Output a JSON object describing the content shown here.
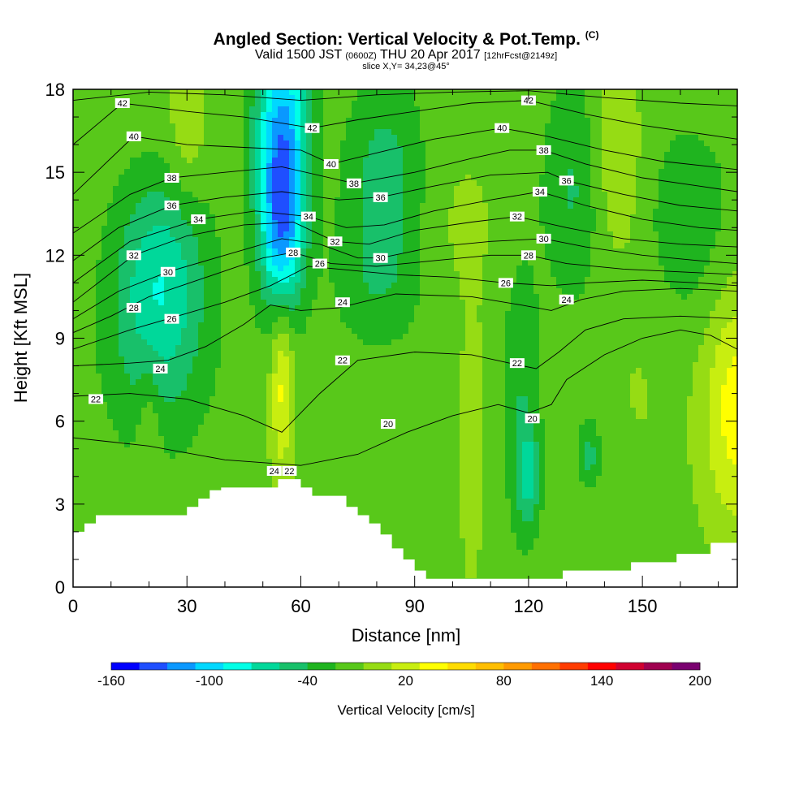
{
  "title": {
    "main": "Angled Section: Vertical Velocity & Pot.Temp.",
    "main_unit": "(C)",
    "valid_a": "Valid 1500 JST",
    "valid_b": "(0600Z)",
    "valid_c": "THU 20 Apr 2017",
    "valid_d": "[12hrFcst@2149z]",
    "slice": "slice X,Y= 34,23@45°"
  },
  "colors": {
    "frame": "#000000",
    "terrain": "#ffffff",
    "contour": "#000000"
  },
  "chart_data": {
    "type": "heatmap",
    "xlabel": "Distance [nm]",
    "ylabel": "Height [Kft MSL]",
    "xlim": [
      0,
      175
    ],
    "ylim": [
      0,
      18
    ],
    "x_ticks": [
      0,
      30,
      60,
      90,
      120,
      150
    ],
    "y_ticks": [
      0,
      3,
      6,
      9,
      12,
      15,
      18
    ],
    "field_label": "Vertical Velocity [cm/s]",
    "colorbar": {
      "min": -160,
      "max": 200,
      "step": 20,
      "tick_labels": [
        "-160",
        "-100",
        "-40",
        "20",
        "80",
        "140",
        "200"
      ],
      "tick_values": [
        -160,
        -100,
        -40,
        20,
        80,
        140,
        200
      ],
      "colors": [
        "#0000ff",
        "#1f4fff",
        "#0a98ff",
        "#00d8ff",
        "#00ffe6",
        "#00d89a",
        "#18c06a",
        "#1fb41f",
        "#58c81a",
        "#96dc14",
        "#c8ee10",
        "#ffff00",
        "#ffdc00",
        "#ffbe00",
        "#ff9a00",
        "#ff7000",
        "#ff3c00",
        "#ff0000",
        "#d00030",
        "#a00050",
        "#7a0070"
      ]
    },
    "terrain_profile": {
      "x": [
        0,
        3,
        6,
        9,
        12,
        15,
        18,
        21,
        24,
        27,
        30,
        33,
        36,
        39,
        42,
        45,
        48,
        51,
        54,
        57,
        60,
        63,
        66,
        69,
        72,
        75,
        78,
        81,
        84,
        87,
        90,
        93,
        96,
        99,
        102,
        105,
        108,
        111,
        114,
        117,
        120,
        123,
        126,
        129,
        132,
        135,
        138,
        141,
        144,
        147,
        150,
        153,
        156,
        159,
        162,
        165,
        168,
        171,
        175
      ],
      "height": [
        2.0,
        2.3,
        2.6,
        2.6,
        2.6,
        2.6,
        2.6,
        2.6,
        2.6,
        2.6,
        2.9,
        3.2,
        3.5,
        3.6,
        3.6,
        3.6,
        3.6,
        3.6,
        3.9,
        3.9,
        3.6,
        3.3,
        3.3,
        3.3,
        2.9,
        2.6,
        2.3,
        1.9,
        1.4,
        1.0,
        0.6,
        0.3,
        0.3,
        0.3,
        0.3,
        0.3,
        0.3,
        0.3,
        0.3,
        0.3,
        0.3,
        0.3,
        0.3,
        0.6,
        0.6,
        0.6,
        0.6,
        0.6,
        0.6,
        0.9,
        0.9,
        0.9,
        0.9,
        1.2,
        1.2,
        1.2,
        1.6,
        1.6,
        1.6
      ]
    },
    "features": [
      {
        "x": 55,
        "z": 16.0,
        "rx": 7,
        "rz": 4.5,
        "w": -120
      },
      {
        "x": 55,
        "z": 12.5,
        "rx": 5,
        "rz": 3.0,
        "w": -70
      },
      {
        "x": 82,
        "z": 15.0,
        "rx": 10,
        "rz": 3.5,
        "w": -40
      },
      {
        "x": 80,
        "z": 11.0,
        "rx": 12,
        "rz": 2.5,
        "w": -25
      },
      {
        "x": 23,
        "z": 11.5,
        "rx": 12,
        "rz": 3.5,
        "w": -60
      },
      {
        "x": 22,
        "z": 8.0,
        "rx": 14,
        "rz": 3.5,
        "w": -30
      },
      {
        "x": 132,
        "z": 14.5,
        "rx": 8,
        "rz": 4.0,
        "w": -35
      },
      {
        "x": 162,
        "z": 13.0,
        "rx": 14,
        "rz": 4.0,
        "w": -25
      },
      {
        "x": 118,
        "z": 7.0,
        "rx": 5,
        "rz": 5.0,
        "w": -30
      },
      {
        "x": 120,
        "z": 4.0,
        "rx": 3,
        "rz": 1.8,
        "w": -50
      },
      {
        "x": 136,
        "z": 4.8,
        "rx": 3,
        "rz": 1.2,
        "w": -40
      },
      {
        "x": 143,
        "z": 15.5,
        "rx": 7,
        "rz": 3.5,
        "w": 30
      },
      {
        "x": 30,
        "z": 16.5,
        "rx": 5,
        "rz": 2.5,
        "w": 25
      },
      {
        "x": 175,
        "z": 6.5,
        "rx": 9,
        "rz": 4.5,
        "w": 60
      },
      {
        "x": 55,
        "z": 7.5,
        "rx": 3,
        "rz": 3.5,
        "w": 55
      },
      {
        "x": 105,
        "z": 5.0,
        "rx": 3,
        "rz": 4.5,
        "w": 25
      },
      {
        "x": 20,
        "z": 5.8,
        "rx": 3,
        "rz": 2.5,
        "w": 25
      },
      {
        "x": 103,
        "z": 13.0,
        "rx": 10,
        "rz": 3.0,
        "w": 12
      },
      {
        "x": 150,
        "z": 8.0,
        "rx": 10,
        "rz": 5.0,
        "w": 10
      }
    ],
    "contour_labels": [
      {
        "text": "42",
        "x": 13,
        "z": 17.5
      },
      {
        "text": "40",
        "x": 16,
        "z": 16.3
      },
      {
        "text": "38",
        "x": 26,
        "z": 14.8
      },
      {
        "text": "36",
        "x": 26,
        "z": 13.8
      },
      {
        "text": "34",
        "x": 33,
        "z": 13.3
      },
      {
        "text": "32",
        "x": 16,
        "z": 12.0
      },
      {
        "text": "30",
        "x": 25,
        "z": 11.4
      },
      {
        "text": "28",
        "x": 16,
        "z": 10.1
      },
      {
        "text": "26",
        "x": 26,
        "z": 9.7
      },
      {
        "text": "24",
        "x": 23,
        "z": 7.9
      },
      {
        "text": "22",
        "x": 6,
        "z": 6.8
      },
      {
        "text": "42",
        "x": 63,
        "z": 16.6
      },
      {
        "text": "40",
        "x": 68,
        "z": 15.3
      },
      {
        "text": "38",
        "x": 74,
        "z": 14.6
      },
      {
        "text": "36",
        "x": 81,
        "z": 14.1
      },
      {
        "text": "34",
        "x": 62,
        "z": 13.4
      },
      {
        "text": "32",
        "x": 69,
        "z": 12.5
      },
      {
        "text": "28",
        "x": 58,
        "z": 12.1
      },
      {
        "text": "26",
        "x": 65,
        "z": 11.7
      },
      {
        "text": "30",
        "x": 81,
        "z": 11.9
      },
      {
        "text": "24",
        "x": 71,
        "z": 10.3
      },
      {
        "text": "22",
        "x": 71,
        "z": 8.2
      },
      {
        "text": "20",
        "x": 83,
        "z": 5.9
      },
      {
        "text": "24",
        "x": 53,
        "z": 4.2
      },
      {
        "text": "22",
        "x": 57,
        "z": 4.2
      },
      {
        "text": "42",
        "x": 120,
        "z": 17.6
      },
      {
        "text": "40",
        "x": 113,
        "z": 16.6
      },
      {
        "text": "38",
        "x": 124,
        "z": 15.8
      },
      {
        "text": "36",
        "x": 130,
        "z": 14.7
      },
      {
        "text": "34",
        "x": 123,
        "z": 14.3
      },
      {
        "text": "32",
        "x": 117,
        "z": 13.4
      },
      {
        "text": "30",
        "x": 124,
        "z": 12.6
      },
      {
        "text": "28",
        "x": 120,
        "z": 12.0
      },
      {
        "text": "26",
        "x": 114,
        "z": 11.0
      },
      {
        "text": "24",
        "x": 130,
        "z": 10.4
      },
      {
        "text": "22",
        "x": 117,
        "z": 8.1
      },
      {
        "text": "20",
        "x": 121,
        "z": 6.1
      }
    ],
    "isentropes": [
      {
        "theta": 20,
        "x": [
          0,
          20,
          40,
          60,
          75,
          88,
          100,
          112,
          120,
          126,
          130,
          140,
          150,
          160,
          168,
          175
        ],
        "z": [
          5.4,
          5.1,
          4.6,
          4.4,
          4.8,
          5.6,
          6.2,
          6.6,
          6.3,
          6.6,
          7.5,
          8.4,
          9.0,
          9.3,
          9.1,
          8.6
        ]
      },
      {
        "theta": 22,
        "x": [
          0,
          15,
          30,
          45,
          55,
          65,
          75,
          90,
          105,
          115,
          122,
          128,
          135,
          145,
          160,
          175
        ],
        "z": [
          6.9,
          7.0,
          6.8,
          6.2,
          5.6,
          7.0,
          8.2,
          8.5,
          8.4,
          8.1,
          7.9,
          8.5,
          9.3,
          9.7,
          9.8,
          9.7
        ]
      },
      {
        "theta": 24,
        "x": [
          0,
          15,
          25,
          35,
          45,
          52,
          60,
          70,
          85,
          105,
          118,
          126,
          134,
          145,
          160,
          175
        ],
        "z": [
          8.0,
          8.1,
          8.2,
          8.7,
          9.5,
          10.2,
          10.0,
          10.1,
          10.6,
          10.5,
          10.2,
          10.0,
          10.4,
          10.7,
          10.8,
          10.7
        ]
      },
      {
        "theta": 26,
        "x": [
          0,
          15,
          25,
          40,
          52,
          62,
          70,
          85,
          100,
          114,
          126,
          135,
          150,
          165,
          175
        ],
        "z": [
          8.6,
          9.3,
          9.7,
          10.3,
          10.9,
          11.6,
          11.5,
          11.3,
          11.2,
          11.0,
          10.9,
          11.0,
          11.1,
          11.0,
          10.9
        ]
      },
      {
        "theta": 28,
        "x": [
          0,
          10,
          20,
          35,
          50,
          58,
          68,
          80,
          95,
          110,
          120,
          130,
          145,
          160,
          175
        ],
        "z": [
          9.2,
          9.8,
          10.5,
          11.2,
          11.9,
          12.1,
          11.7,
          11.6,
          11.8,
          12.0,
          12.0,
          11.7,
          11.5,
          11.4,
          11.3
        ]
      },
      {
        "theta": 30,
        "x": [
          0,
          12,
          25,
          40,
          55,
          65,
          75,
          81,
          95,
          110,
          124,
          135,
          150,
          165,
          175
        ],
        "z": [
          9.7,
          10.7,
          11.4,
          12.0,
          12.6,
          12.4,
          11.9,
          11.9,
          12.3,
          12.5,
          12.6,
          12.3,
          12.0,
          11.8,
          11.7
        ]
      },
      {
        "theta": 32,
        "x": [
          0,
          16,
          30,
          45,
          58,
          69,
          78,
          90,
          105,
          117,
          130,
          145,
          160,
          175
        ],
        "z": [
          10.3,
          12.0,
          12.7,
          13.1,
          13.2,
          12.5,
          12.4,
          12.9,
          13.2,
          13.4,
          13.0,
          12.6,
          12.4,
          12.3
        ]
      },
      {
        "theta": 34,
        "x": [
          0,
          15,
          33,
          48,
          62,
          72,
          82,
          95,
          110,
          123,
          135,
          150,
          165,
          175
        ],
        "z": [
          11.0,
          12.5,
          13.3,
          13.6,
          13.4,
          13.0,
          13.1,
          13.6,
          14.0,
          14.3,
          13.8,
          13.3,
          13.0,
          12.9
        ]
      },
      {
        "theta": 36,
        "x": [
          0,
          12,
          26,
          40,
          55,
          70,
          81,
          95,
          110,
          125,
          130,
          145,
          160,
          175
        ],
        "z": [
          11.8,
          13.0,
          13.8,
          14.1,
          14.3,
          14.0,
          14.1,
          14.5,
          14.9,
          15.0,
          14.7,
          14.2,
          13.8,
          13.6
        ]
      },
      {
        "theta": 38,
        "x": [
          0,
          15,
          26,
          40,
          55,
          74,
          90,
          105,
          115,
          124,
          135,
          150,
          165,
          175
        ],
        "z": [
          12.8,
          14.2,
          14.8,
          15.0,
          15.2,
          14.6,
          15.0,
          15.5,
          15.8,
          15.8,
          15.3,
          14.8,
          14.5,
          14.3
        ]
      },
      {
        "theta": 40,
        "x": [
          0,
          16,
          30,
          45,
          60,
          68,
          80,
          95,
          113,
          125,
          140,
          155,
          175
        ],
        "z": [
          14.2,
          16.3,
          16.0,
          15.9,
          15.8,
          15.3,
          15.7,
          16.2,
          16.6,
          16.3,
          15.8,
          15.4,
          15.1
        ]
      },
      {
        "theta": 42,
        "x": [
          0,
          13,
          30,
          45,
          63,
          75,
          90,
          105,
          120,
          135,
          150,
          165,
          175
        ],
        "z": [
          16.0,
          17.5,
          17.2,
          17.0,
          16.6,
          16.9,
          17.2,
          17.5,
          17.6,
          17.1,
          16.7,
          16.4,
          16.2
        ]
      },
      {
        "theta": 44,
        "x": [
          0,
          20,
          40,
          60,
          80,
          100,
          120,
          140,
          160,
          175
        ],
        "z": [
          17.6,
          17.9,
          17.8,
          17.6,
          17.8,
          17.9,
          17.95,
          17.7,
          17.5,
          17.4
        ]
      }
    ]
  }
}
